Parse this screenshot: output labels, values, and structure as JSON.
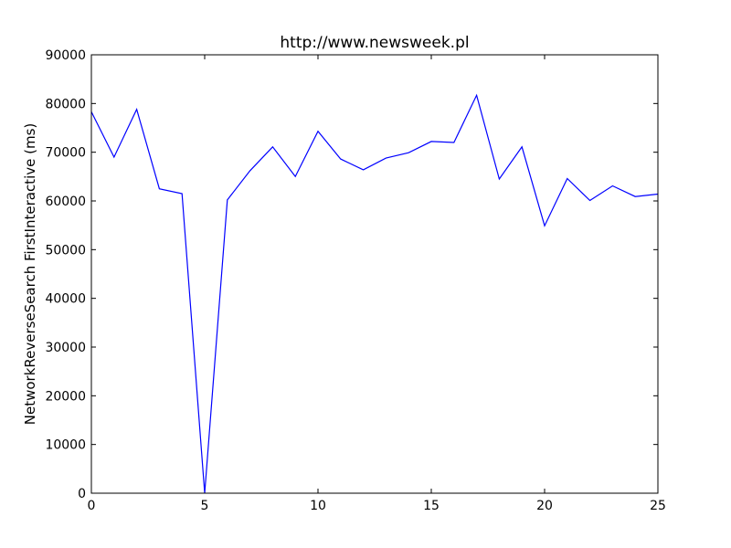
{
  "chart_data": {
    "type": "line",
    "title": "http://www.newsweek.pl",
    "xlabel": "",
    "ylabel": "NetworkReverseSearch FirstInteractive (ms)",
    "xlim": [
      0,
      25
    ],
    "ylim": [
      0,
      90000
    ],
    "x_ticks": [
      0,
      5,
      10,
      15,
      20,
      25
    ],
    "y_ticks": [
      0,
      10000,
      20000,
      30000,
      40000,
      50000,
      60000,
      70000,
      80000,
      90000
    ],
    "grid": false,
    "series": [
      {
        "color": "#0000ff",
        "x": [
          0,
          1,
          2,
          3,
          4,
          5,
          6,
          7,
          8,
          9,
          10,
          11,
          12,
          13,
          14,
          15,
          16,
          17,
          18,
          19,
          20,
          21,
          22,
          23,
          24,
          25
        ],
        "values": [
          78300,
          69000,
          78800,
          62500,
          61500,
          0,
          60200,
          66200,
          71100,
          65000,
          74300,
          68600,
          66400,
          68800,
          69900,
          72200,
          72000,
          81700,
          64500,
          71100,
          54900,
          64600,
          60100,
          63100,
          60900,
          61400
        ]
      }
    ]
  }
}
